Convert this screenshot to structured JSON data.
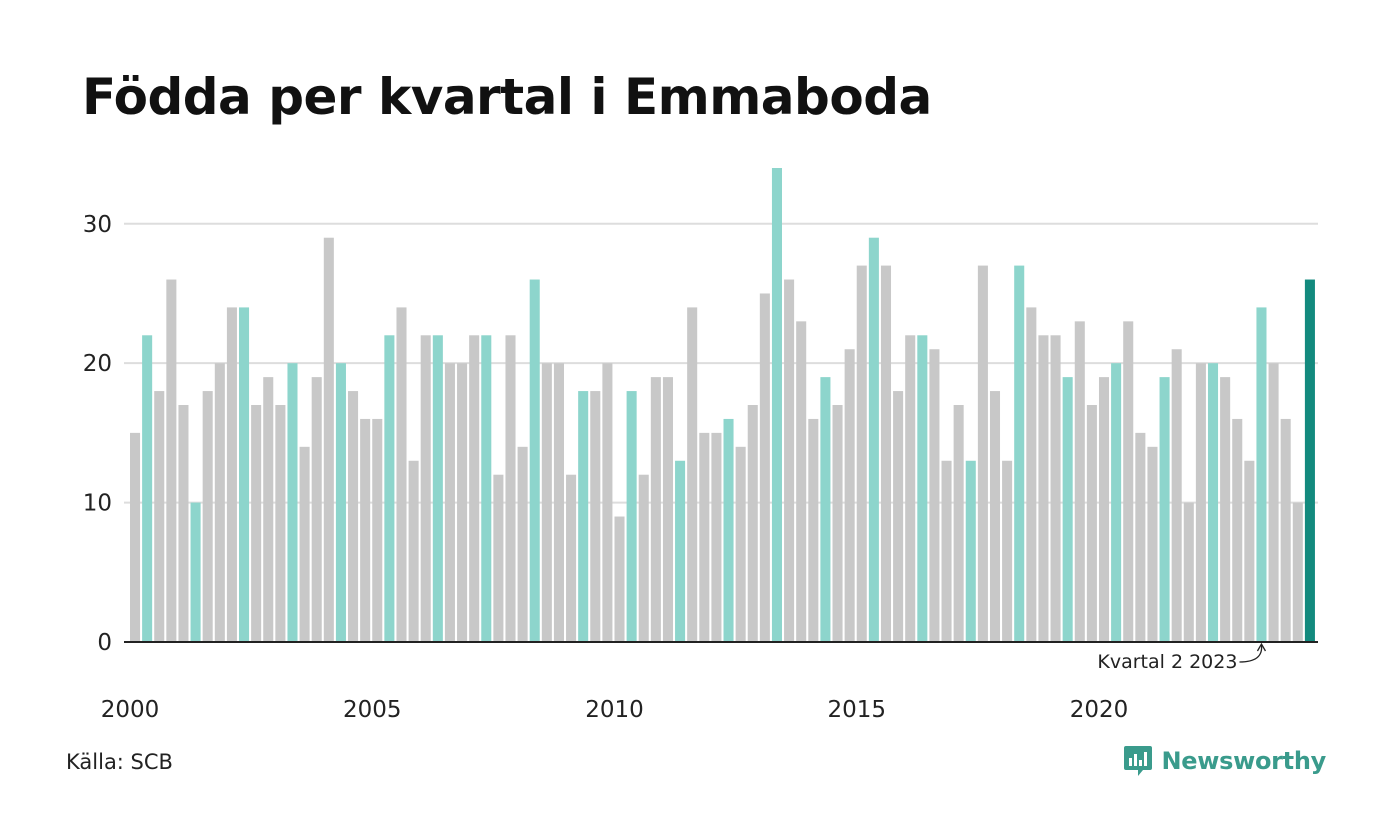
{
  "title": "Födda per kvartal i Emmaboda",
  "source": "Källa: SCB",
  "brand": "Newsworthy",
  "colors": {
    "bar_default": "#c8c8c8",
    "bar_q2": "#8dd5cc",
    "bar_latest": "#138a7e",
    "grid": "#dddddd",
    "axis": "#222222",
    "brand": "#3a9b8c"
  },
  "chart_data": {
    "type": "bar",
    "title": "Födda per kvartal i Emmaboda",
    "xlabel": "",
    "ylabel": "",
    "ylim": [
      0,
      34
    ],
    "yticks": [
      0,
      10,
      20,
      30
    ],
    "xtick_labels": [
      "2000",
      "2005",
      "2010",
      "2015",
      "2020"
    ],
    "grid": true,
    "highlight": "Q2 bars in light teal, latest bar in dark teal",
    "annotation": {
      "text": "Kvartal 2 2023",
      "target_index": 93
    },
    "categories": [
      "2000 Q1",
      "2000 Q2",
      "2000 Q3",
      "2000 Q4",
      "2001 Q1",
      "2001 Q2",
      "2001 Q3",
      "2001 Q4",
      "2002 Q1",
      "2002 Q2",
      "2002 Q3",
      "2002 Q4",
      "2003 Q1",
      "2003 Q2",
      "2003 Q3",
      "2003 Q4",
      "2004 Q1",
      "2004 Q2",
      "2004 Q3",
      "2004 Q4",
      "2005 Q1",
      "2005 Q2",
      "2005 Q3",
      "2005 Q4",
      "2006 Q1",
      "2006 Q2",
      "2006 Q3",
      "2006 Q4",
      "2007 Q1",
      "2007 Q2",
      "2007 Q3",
      "2007 Q4",
      "2008 Q1",
      "2008 Q2",
      "2008 Q3",
      "2008 Q4",
      "2009 Q1",
      "2009 Q2",
      "2009 Q3",
      "2009 Q4",
      "2010 Q1",
      "2010 Q2",
      "2010 Q3",
      "2010 Q4",
      "2011 Q1",
      "2011 Q2",
      "2011 Q3",
      "2011 Q4",
      "2012 Q1",
      "2012 Q2",
      "2012 Q3",
      "2012 Q4",
      "2013 Q1",
      "2013 Q2",
      "2013 Q3",
      "2013 Q4",
      "2014 Q1",
      "2014 Q2",
      "2014 Q3",
      "2014 Q4",
      "2015 Q1",
      "2015 Q2",
      "2015 Q3",
      "2015 Q4",
      "2016 Q1",
      "2016 Q2",
      "2016 Q3",
      "2016 Q4",
      "2017 Q1",
      "2017 Q2",
      "2017 Q3",
      "2017 Q4",
      "2018 Q1",
      "2018 Q2",
      "2018 Q3",
      "2018 Q4",
      "2019 Q1",
      "2019 Q2",
      "2019 Q3",
      "2019 Q4",
      "2020 Q1",
      "2020 Q2",
      "2020 Q3",
      "2020 Q4",
      "2021 Q1",
      "2021 Q2",
      "2021 Q3",
      "2021 Q4",
      "2022 Q1",
      "2022 Q2",
      "2022 Q3",
      "2022 Q4",
      "2023 Q1",
      "2023 Q2",
      "2023 Q3",
      "2023 Q4",
      "2024 Q1",
      "2024 Q2"
    ],
    "values": [
      15,
      22,
      18,
      26,
      17,
      10,
      18,
      20,
      24,
      24,
      17,
      19,
      17,
      20,
      14,
      19,
      29,
      20,
      18,
      16,
      16,
      22,
      24,
      13,
      22,
      22,
      20,
      20,
      22,
      22,
      12,
      22,
      14,
      26,
      20,
      20,
      12,
      18,
      18,
      20,
      9,
      18,
      12,
      19,
      19,
      13,
      24,
      15,
      15,
      16,
      14,
      17,
      25,
      34,
      26,
      23,
      16,
      19,
      17,
      21,
      27,
      29,
      27,
      18,
      22,
      22,
      21,
      13,
      17,
      13,
      27,
      18,
      13,
      27,
      24,
      22,
      22,
      19,
      23,
      17,
      19,
      20,
      23,
      15,
      14,
      19,
      21,
      10,
      20,
      20,
      19,
      16,
      13,
      24,
      20,
      16,
      10,
      26
    ]
  }
}
